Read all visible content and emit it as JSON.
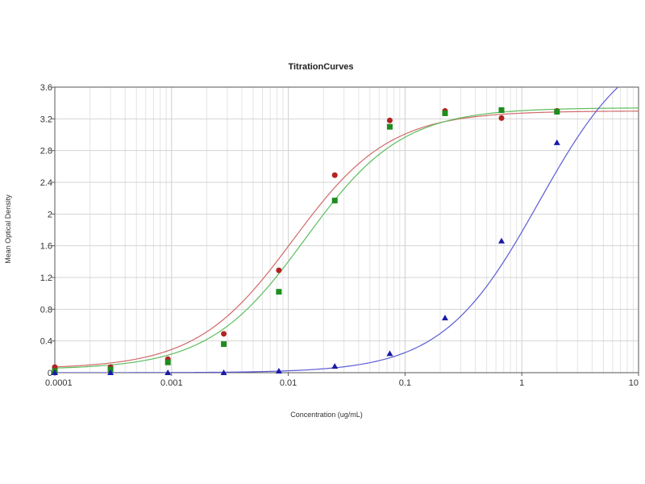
{
  "chart_data": {
    "type": "scatter",
    "title": "TitrationCurves",
    "xlabel": "Concentration (ug/mL)",
    "ylabel": "Mean Optical Density",
    "xscale": "log",
    "xlim": [
      0.0001,
      10
    ],
    "ylim": [
      0,
      3.6
    ],
    "x_ticks": [
      "0.0001",
      "0.001",
      "0.01",
      "0.1",
      "1",
      "10"
    ],
    "y_ticks": [
      "0",
      "0.4",
      "0.8",
      "1.2",
      "1.6",
      "2",
      "2.4",
      "2.8",
      "3.2",
      "3.6"
    ],
    "grid": true,
    "series": [
      {
        "color": "#b22222",
        "fit_color": "#d06a6a",
        "marker": "circle",
        "points": [
          [
            0.0001,
            0.07
          ],
          [
            0.0003,
            0.07
          ],
          [
            0.00093,
            0.17
          ],
          [
            0.0028,
            0.49
          ],
          [
            0.0083,
            1.29
          ],
          [
            0.025,
            2.49
          ],
          [
            0.074,
            3.18
          ],
          [
            0.22,
            3.3
          ],
          [
            0.67,
            3.21
          ],
          [
            2.0,
            3.3
          ]
        ],
        "fit": {
          "bottom": 0.05,
          "top": 3.3,
          "ec50": 0.011,
          "hill": 1.05
        }
      },
      {
        "color": "#1e8c1e",
        "fit_color": "#5ebd5e",
        "marker": "square",
        "points": [
          [
            0.0001,
            0.02
          ],
          [
            0.0003,
            0.04
          ],
          [
            0.00093,
            0.13
          ],
          [
            0.0028,
            0.36
          ],
          [
            0.0083,
            1.02
          ],
          [
            0.025,
            2.17
          ],
          [
            0.074,
            3.1
          ],
          [
            0.22,
            3.27
          ],
          [
            0.67,
            3.31
          ],
          [
            2.0,
            3.29
          ]
        ],
        "fit": {
          "bottom": 0.04,
          "top": 3.34,
          "ec50": 0.014,
          "hill": 1.05
        }
      },
      {
        "color": "#1a1aa6",
        "fit_color": "#5c5cd6",
        "marker": "triangle",
        "points": [
          [
            0.0001,
            0.0
          ],
          [
            0.0003,
            0.0
          ],
          [
            0.00093,
            0.0
          ],
          [
            0.0028,
            0.0
          ],
          [
            0.0083,
            0.02
          ],
          [
            0.025,
            0.08
          ],
          [
            0.074,
            0.24
          ],
          [
            0.22,
            0.69
          ],
          [
            0.67,
            1.66
          ],
          [
            2.0,
            2.9
          ]
        ],
        "fit": {
          "bottom": 0.0,
          "top": 4.3,
          "ec50": 1.4,
          "hill": 1.05
        }
      }
    ]
  }
}
